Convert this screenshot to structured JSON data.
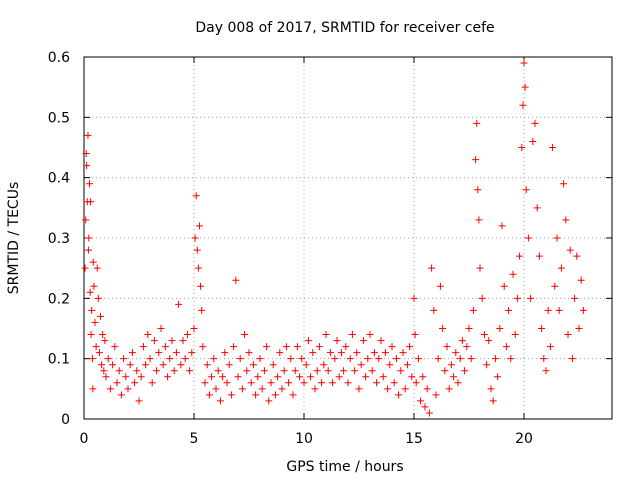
{
  "chart_data": {
    "type": "scatter",
    "title": "Day 008 of 2017, SRMTID for receiver cefe",
    "xlabel": "GPS time / hours",
    "ylabel": "SRMTID / TECUs",
    "xlim": [
      0,
      24
    ],
    "ylim": [
      0,
      0.6
    ],
    "xticks": [
      "0",
      "5",
      "10",
      "15",
      "20"
    ],
    "yticks": [
      "0",
      "0.1",
      "0.2",
      "0.3",
      "0.4",
      "0.5",
      "0.6"
    ],
    "grid": true,
    "marker": "+",
    "marker_color": "#ff0000",
    "series": [
      {
        "name": "SRMTID",
        "points": [
          [
            0.05,
            0.25
          ],
          [
            0.08,
            0.33
          ],
          [
            0.1,
            0.44
          ],
          [
            0.12,
            0.42
          ],
          [
            0.15,
            0.36
          ],
          [
            0.18,
            0.47
          ],
          [
            0.2,
            0.28
          ],
          [
            0.22,
            0.3
          ],
          [
            0.25,
            0.39
          ],
          [
            0.28,
            0.21
          ],
          [
            0.3,
            0.36
          ],
          [
            0.32,
            0.14
          ],
          [
            0.35,
            0.18
          ],
          [
            0.38,
            0.1
          ],
          [
            0.4,
            0.05
          ],
          [
            0.42,
            0.26
          ],
          [
            0.45,
            0.22
          ],
          [
            0.5,
            0.16
          ],
          [
            0.55,
            0.12
          ],
          [
            0.6,
            0.25
          ],
          [
            0.65,
            0.2
          ],
          [
            0.7,
            0.11
          ],
          [
            0.75,
            0.17
          ],
          [
            0.8,
            0.09
          ],
          [
            0.85,
            0.14
          ],
          [
            0.9,
            0.08
          ],
          [
            0.95,
            0.13
          ],
          [
            1.0,
            0.07
          ],
          [
            1.1,
            0.1
          ],
          [
            1.2,
            0.05
          ],
          [
            1.3,
            0.09
          ],
          [
            1.4,
            0.12
          ],
          [
            1.5,
            0.06
          ],
          [
            1.6,
            0.08
          ],
          [
            1.7,
            0.04
          ],
          [
            1.8,
            0.1
          ],
          [
            1.9,
            0.07
          ],
          [
            2.0,
            0.05
          ],
          [
            2.1,
            0.09
          ],
          [
            2.2,
            0.11
          ],
          [
            2.3,
            0.06
          ],
          [
            2.4,
            0.08
          ],
          [
            2.5,
            0.03
          ],
          [
            2.6,
            0.07
          ],
          [
            2.7,
            0.12
          ],
          [
            2.8,
            0.09
          ],
          [
            2.9,
            0.14
          ],
          [
            3.0,
            0.1
          ],
          [
            3.1,
            0.06
          ],
          [
            3.2,
            0.13
          ],
          [
            3.3,
            0.08
          ],
          [
            3.4,
            0.11
          ],
          [
            3.5,
            0.15
          ],
          [
            3.6,
            0.09
          ],
          [
            3.7,
            0.12
          ],
          [
            3.8,
            0.07
          ],
          [
            3.9,
            0.1
          ],
          [
            4.0,
            0.13
          ],
          [
            4.1,
            0.08
          ],
          [
            4.2,
            0.11
          ],
          [
            4.3,
            0.19
          ],
          [
            4.4,
            0.09
          ],
          [
            4.5,
            0.13
          ],
          [
            4.6,
            0.1
          ],
          [
            4.7,
            0.14
          ],
          [
            4.8,
            0.08
          ],
          [
            4.9,
            0.11
          ],
          [
            5.0,
            0.15
          ],
          [
            5.05,
            0.3
          ],
          [
            5.1,
            0.37
          ],
          [
            5.15,
            0.28
          ],
          [
            5.2,
            0.25
          ],
          [
            5.25,
            0.32
          ],
          [
            5.3,
            0.22
          ],
          [
            5.35,
            0.18
          ],
          [
            5.4,
            0.12
          ],
          [
            5.5,
            0.06
          ],
          [
            5.6,
            0.09
          ],
          [
            5.7,
            0.04
          ],
          [
            5.8,
            0.07
          ],
          [
            5.9,
            0.1
          ],
          [
            6.0,
            0.05
          ],
          [
            6.1,
            0.08
          ],
          [
            6.2,
            0.03
          ],
          [
            6.3,
            0.07
          ],
          [
            6.4,
            0.11
          ],
          [
            6.5,
            0.06
          ],
          [
            6.6,
            0.09
          ],
          [
            6.7,
            0.04
          ],
          [
            6.8,
            0.12
          ],
          [
            6.9,
            0.23
          ],
          [
            7.0,
            0.07
          ],
          [
            7.1,
            0.1
          ],
          [
            7.2,
            0.05
          ],
          [
            7.3,
            0.14
          ],
          [
            7.4,
            0.08
          ],
          [
            7.5,
            0.11
          ],
          [
            7.6,
            0.06
          ],
          [
            7.7,
            0.09
          ],
          [
            7.8,
            0.04
          ],
          [
            7.9,
            0.07
          ],
          [
            8.0,
            0.1
          ],
          [
            8.1,
            0.05
          ],
          [
            8.2,
            0.08
          ],
          [
            8.3,
            0.12
          ],
          [
            8.4,
            0.03
          ],
          [
            8.5,
            0.06
          ],
          [
            8.6,
            0.09
          ],
          [
            8.7,
            0.04
          ],
          [
            8.8,
            0.07
          ],
          [
            8.9,
            0.11
          ],
          [
            9.0,
            0.05
          ],
          [
            9.1,
            0.08
          ],
          [
            9.2,
            0.12
          ],
          [
            9.3,
            0.06
          ],
          [
            9.4,
            0.1
          ],
          [
            9.5,
            0.04
          ],
          [
            9.6,
            0.08
          ],
          [
            9.7,
            0.12
          ],
          [
            9.8,
            0.07
          ],
          [
            9.9,
            0.1
          ],
          [
            10.0,
            0.06
          ],
          [
            10.1,
            0.09
          ],
          [
            10.2,
            0.13
          ],
          [
            10.3,
            0.07
          ],
          [
            10.4,
            0.11
          ],
          [
            10.5,
            0.05
          ],
          [
            10.6,
            0.08
          ],
          [
            10.7,
            0.12
          ],
          [
            10.8,
            0.06
          ],
          [
            10.9,
            0.09
          ],
          [
            11.0,
            0.14
          ],
          [
            11.1,
            0.08
          ],
          [
            11.2,
            0.11
          ],
          [
            11.3,
            0.06
          ],
          [
            11.4,
            0.1
          ],
          [
            11.5,
            0.13
          ],
          [
            11.6,
            0.07
          ],
          [
            11.7,
            0.11
          ],
          [
            11.8,
            0.08
          ],
          [
            11.9,
            0.12
          ],
          [
            12.0,
            0.06
          ],
          [
            12.1,
            0.1
          ],
          [
            12.2,
            0.14
          ],
          [
            12.3,
            0.08
          ],
          [
            12.4,
            0.11
          ],
          [
            12.5,
            0.05
          ],
          [
            12.6,
            0.09
          ],
          [
            12.7,
            0.13
          ],
          [
            12.8,
            0.07
          ],
          [
            12.9,
            0.1
          ],
          [
            13.0,
            0.14
          ],
          [
            13.1,
            0.08
          ],
          [
            13.2,
            0.11
          ],
          [
            13.3,
            0.06
          ],
          [
            13.4,
            0.1
          ],
          [
            13.5,
            0.13
          ],
          [
            13.6,
            0.07
          ],
          [
            13.7,
            0.11
          ],
          [
            13.8,
            0.05
          ],
          [
            13.9,
            0.09
          ],
          [
            14.0,
            0.12
          ],
          [
            14.1,
            0.06
          ],
          [
            14.2,
            0.1
          ],
          [
            14.3,
            0.04
          ],
          [
            14.4,
            0.08
          ],
          [
            14.5,
            0.11
          ],
          [
            14.6,
            0.05
          ],
          [
            14.7,
            0.09
          ],
          [
            14.8,
            0.12
          ],
          [
            14.9,
            0.07
          ],
          [
            15.0,
            0.2
          ],
          [
            15.05,
            0.14
          ],
          [
            15.1,
            0.06
          ],
          [
            15.2,
            0.1
          ],
          [
            15.3,
            0.03
          ],
          [
            15.4,
            0.07
          ],
          [
            15.5,
            0.02
          ],
          [
            15.6,
            0.05
          ],
          [
            15.7,
            0.01
          ],
          [
            15.8,
            0.25
          ],
          [
            15.9,
            0.18
          ],
          [
            16.0,
            0.04
          ],
          [
            16.1,
            0.1
          ],
          [
            16.2,
            0.22
          ],
          [
            16.3,
            0.15
          ],
          [
            16.4,
            0.08
          ],
          [
            16.5,
            0.12
          ],
          [
            16.6,
            0.05
          ],
          [
            16.7,
            0.09
          ],
          [
            16.8,
            0.07
          ],
          [
            16.9,
            0.11
          ],
          [
            17.0,
            0.06
          ],
          [
            17.1,
            0.1
          ],
          [
            17.2,
            0.13
          ],
          [
            17.3,
            0.08
          ],
          [
            17.4,
            0.12
          ],
          [
            17.5,
            0.15
          ],
          [
            17.6,
            0.1
          ],
          [
            17.7,
            0.18
          ],
          [
            17.8,
            0.43
          ],
          [
            17.85,
            0.49
          ],
          [
            17.9,
            0.38
          ],
          [
            17.95,
            0.33
          ],
          [
            18.0,
            0.25
          ],
          [
            18.1,
            0.2
          ],
          [
            18.2,
            0.14
          ],
          [
            18.3,
            0.09
          ],
          [
            18.4,
            0.13
          ],
          [
            18.5,
            0.05
          ],
          [
            18.6,
            0.03
          ],
          [
            18.7,
            0.1
          ],
          [
            18.8,
            0.07
          ],
          [
            18.9,
            0.15
          ],
          [
            19.0,
            0.32
          ],
          [
            19.1,
            0.22
          ],
          [
            19.2,
            0.12
          ],
          [
            19.3,
            0.18
          ],
          [
            19.4,
            0.1
          ],
          [
            19.5,
            0.24
          ],
          [
            19.6,
            0.14
          ],
          [
            19.7,
            0.2
          ],
          [
            19.8,
            0.27
          ],
          [
            19.9,
            0.45
          ],
          [
            19.95,
            0.52
          ],
          [
            20.0,
            0.59
          ],
          [
            20.05,
            0.55
          ],
          [
            20.1,
            0.38
          ],
          [
            20.2,
            0.3
          ],
          [
            20.3,
            0.2
          ],
          [
            20.4,
            0.46
          ],
          [
            20.5,
            0.49
          ],
          [
            20.6,
            0.35
          ],
          [
            20.7,
            0.27
          ],
          [
            20.8,
            0.15
          ],
          [
            20.9,
            0.1
          ],
          [
            21.0,
            0.08
          ],
          [
            21.1,
            0.18
          ],
          [
            21.2,
            0.12
          ],
          [
            21.3,
            0.45
          ],
          [
            21.4,
            0.22
          ],
          [
            21.5,
            0.3
          ],
          [
            21.6,
            0.18
          ],
          [
            21.7,
            0.25
          ],
          [
            21.8,
            0.39
          ],
          [
            21.9,
            0.33
          ],
          [
            22.0,
            0.14
          ],
          [
            22.1,
            0.28
          ],
          [
            22.2,
            0.1
          ],
          [
            22.3,
            0.2
          ],
          [
            22.4,
            0.27
          ],
          [
            22.5,
            0.15
          ],
          [
            22.6,
            0.23
          ],
          [
            22.7,
            0.18
          ]
        ]
      }
    ]
  }
}
